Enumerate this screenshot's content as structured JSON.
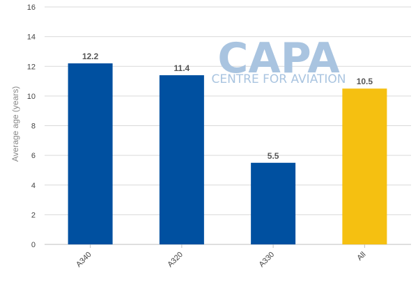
{
  "chart_data": {
    "type": "bar",
    "categories": [
      "A340",
      "A320",
      "A330",
      "All"
    ],
    "values": [
      12.2,
      11.4,
      5.5,
      10.5
    ],
    "data_labels": [
      "12.2",
      "11.4",
      "5.5",
      "10.5"
    ],
    "bar_colors": [
      "#0050a0",
      "#0050a0",
      "#0050a0",
      "#f5c011"
    ],
    "title": "",
    "xlabel": "",
    "ylabel": "Average age (years)",
    "ylim": [
      0,
      16
    ],
    "yticks": [
      0,
      2,
      4,
      6,
      8,
      10,
      12,
      14,
      16
    ],
    "grid": true,
    "legend": "none"
  },
  "watermark": {
    "brand": "CAPA",
    "tagline": "CENTRE FOR AVIATION",
    "color": "#a9c4e0"
  },
  "colors": {
    "gridline": "#d9d9d9",
    "axis": "#bfbfbf"
  }
}
